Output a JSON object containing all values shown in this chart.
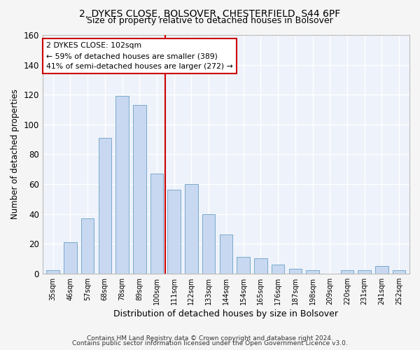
{
  "title1": "2, DYKES CLOSE, BOLSOVER, CHESTERFIELD, S44 6PF",
  "title2": "Size of property relative to detached houses in Bolsover",
  "xlabel": "Distribution of detached houses by size in Bolsover",
  "ylabel": "Number of detached properties",
  "bar_labels": [
    "35sqm",
    "46sqm",
    "57sqm",
    "68sqm",
    "78sqm",
    "89sqm",
    "100sqm",
    "111sqm",
    "122sqm",
    "133sqm",
    "144sqm",
    "154sqm",
    "165sqm",
    "176sqm",
    "187sqm",
    "198sqm",
    "209sqm",
    "220sqm",
    "231sqm",
    "241sqm",
    "252sqm"
  ],
  "bar_values": [
    2,
    21,
    37,
    91,
    119,
    113,
    67,
    56,
    60,
    40,
    26,
    11,
    10,
    6,
    3,
    2,
    0,
    2,
    2,
    5,
    2
  ],
  "bar_color": "#c8d8f0",
  "bar_edge_color": "#7aabcc",
  "vline_color": "#cc0000",
  "annotation_text": "2 DYKES CLOSE: 102sqm\n← 59% of detached houses are smaller (389)\n41% of semi-detached houses are larger (272) →",
  "annotation_box_color": "#cc0000",
  "ylim": [
    0,
    160
  ],
  "yticks": [
    0,
    20,
    40,
    60,
    80,
    100,
    120,
    140,
    160
  ],
  "footnote1": "Contains HM Land Registry data © Crown copyright and database right 2024.",
  "footnote2": "Contains public sector information licensed under the Open Government Licence v3.0.",
  "fig_bg_color": "#f5f5f5",
  "ax_bg_color": "#eef2fb",
  "grid_color": "#ffffff",
  "title1_fontsize": 10,
  "title2_fontsize": 9,
  "bar_width": 0.75
}
